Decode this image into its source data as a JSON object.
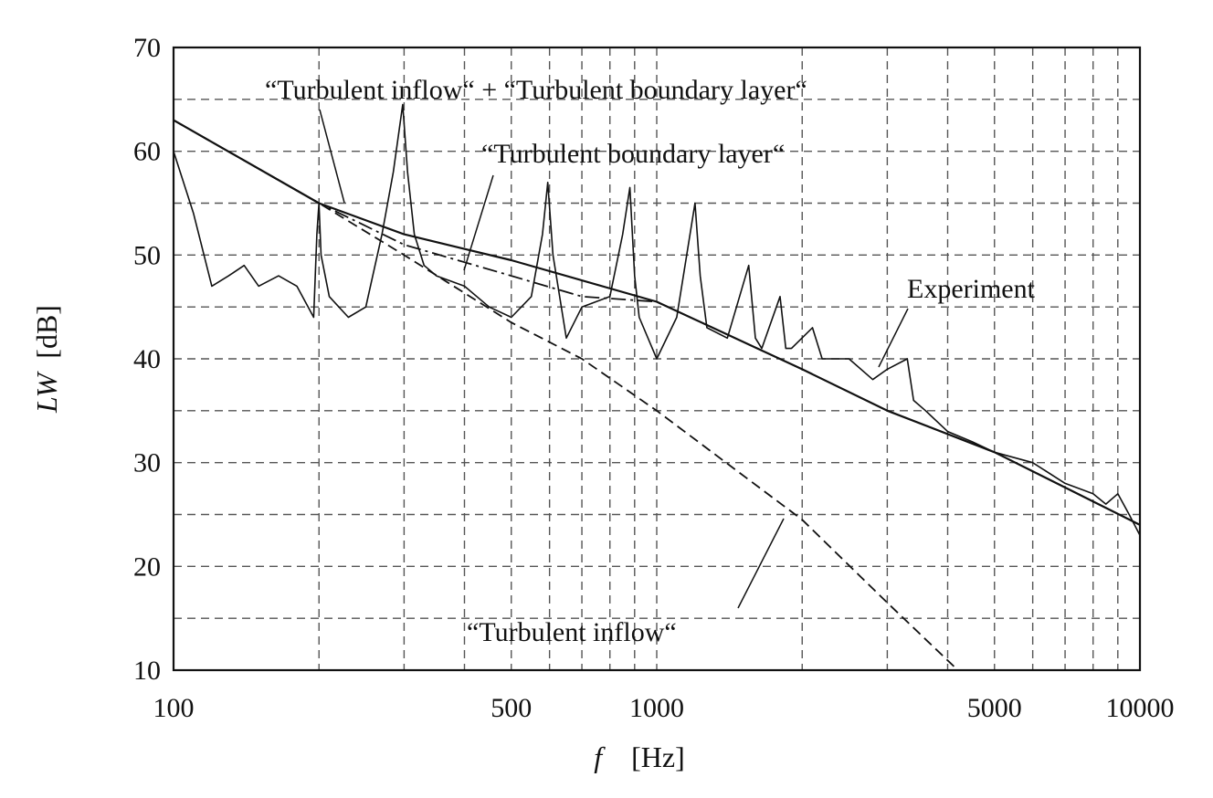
{
  "chart_data": {
    "type": "line",
    "title": "",
    "xlabel": {
      "symbol": "f",
      "unit": "[Hz]"
    },
    "ylabel": {
      "symbol": "LW",
      "unit": "[dB]"
    },
    "xscale": "log",
    "xlim": [
      100,
      10000
    ],
    "ylim": [
      10,
      70
    ],
    "x_tick_labels": [
      "100",
      "500",
      "1000",
      "5000",
      "10000"
    ],
    "y_tick_labels": [
      "10",
      "20",
      "30",
      "40",
      "50",
      "60",
      "70"
    ],
    "grid": true,
    "annotations": [
      "“Turbulent inflow“ + “Turbulent boundary layer“",
      "“Turbulent boundary layer“",
      "Experiment",
      "“Turbulent inflow“"
    ],
    "series": [
      {
        "label": "“Turbulent inflow“ + “Turbulent boundary layer“",
        "style": "solid",
        "x": [
          100,
          200,
          300,
          500,
          1000,
          2000,
          3000,
          5000,
          10000
        ],
        "y": [
          63,
          55,
          52,
          49.5,
          45.5,
          39,
          35,
          31,
          24
        ]
      },
      {
        "label": "“Turbulent boundary layer“",
        "style": "dash-dot",
        "x": [
          100,
          200,
          300,
          500,
          700,
          1000
        ],
        "y": [
          63,
          55,
          51,
          48,
          46,
          45.5
        ]
      },
      {
        "label": "“Turbulent inflow“",
        "style": "dashed",
        "x": [
          100,
          200,
          300,
          500,
          700,
          1000,
          2000,
          3000,
          4200
        ],
        "y": [
          63,
          55,
          50,
          43.5,
          40,
          35,
          24.5,
          16.5,
          10
        ]
      },
      {
        "label": "Experiment",
        "style": "solid-noisy",
        "x": [
          100,
          110,
          120,
          130,
          140,
          150,
          165,
          180,
          195,
          198,
          200,
          202,
          210,
          230,
          250,
          270,
          285,
          298,
          305,
          315,
          330,
          350,
          400,
          450,
          500,
          550,
          580,
          595,
          610,
          650,
          700,
          800,
          850,
          880,
          900,
          920,
          1000,
          1100,
          1200,
          1230,
          1270,
          1400,
          1550,
          1600,
          1650,
          1800,
          1850,
          1900,
          2100,
          2200,
          2500,
          2800,
          3000,
          3300,
          3400,
          3600,
          4000,
          4500,
          5000,
          6000,
          7000,
          8000,
          8500,
          9000,
          9500,
          10000
        ],
        "y": [
          60,
          54,
          47,
          48,
          49,
          47,
          48,
          47,
          44,
          52,
          55,
          50,
          46,
          44,
          45,
          52,
          58,
          64.5,
          58,
          52,
          49,
          48,
          47,
          45,
          44,
          46,
          52,
          57,
          50,
          42,
          45,
          46,
          52,
          56.5,
          48,
          44,
          40,
          44,
          55,
          48,
          43,
          42,
          49,
          42,
          41,
          46,
          41,
          41,
          43,
          40,
          40,
          38,
          39,
          40,
          36,
          35,
          33,
          32,
          31,
          30,
          28,
          27,
          26,
          27,
          25,
          23
        ]
      }
    ]
  }
}
